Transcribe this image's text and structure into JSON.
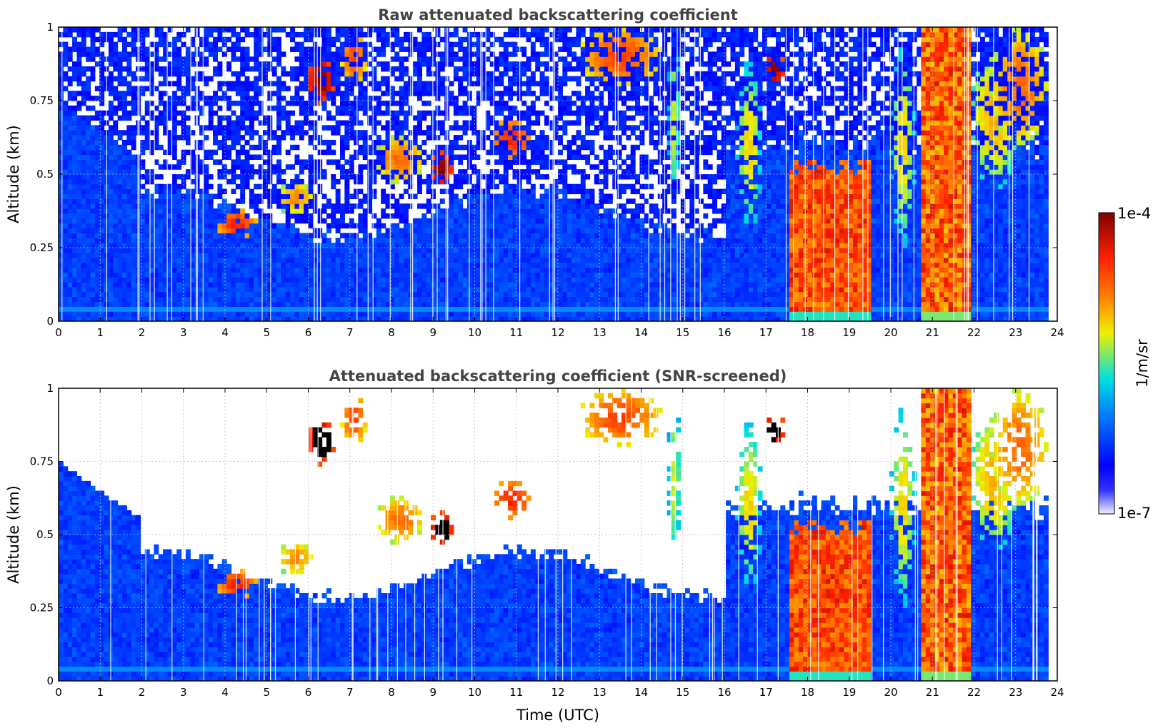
{
  "colors": {
    "colormap": [
      "#f0f0ff",
      "#0000ff",
      "#0080ff",
      "#00e0e0",
      "#f0f000",
      "#ff8000",
      "#ff2000",
      "#800000"
    ],
    "frame": "#000000",
    "grid": "#bbbbbb",
    "title": "#444444",
    "overflow": "#000000"
  },
  "chart_data": [
    {
      "type": "heatmap",
      "title": "Raw attenuated backscattering coefficient",
      "xlabel": "",
      "ylabel": "Altitude (km)",
      "xlim": [
        0,
        24
      ],
      "ylim": [
        0,
        1
      ],
      "x_ticks": [
        "0",
        "1",
        "2",
        "3",
        "4",
        "5",
        "6",
        "7",
        "8",
        "9",
        "10",
        "11",
        "12",
        "13",
        "14",
        "15",
        "16",
        "17",
        "18",
        "19",
        "20",
        "21",
        "22",
        "23",
        "24"
      ],
      "y_ticks": [
        "0",
        "0.25",
        "0.5",
        "0.75",
        "1"
      ],
      "grid": true,
      "screened": false,
      "features": [
        {
          "x": [
            0,
            24
          ],
          "y": [
            0,
            0.35
          ],
          "level": "low"
        },
        {
          "x": [
            17.6,
            19.5
          ],
          "y": [
            0,
            0.55
          ],
          "level": "high"
        },
        {
          "x": [
            20.7,
            21.9
          ],
          "y": [
            0,
            1.0
          ],
          "level": "high"
        },
        {
          "x": [
            6.0,
            6.7
          ],
          "y": [
            0.75,
            0.92
          ],
          "level": "very high"
        },
        {
          "x": [
            9.0,
            9.5
          ],
          "y": [
            0.47,
            0.6
          ],
          "level": "very high"
        },
        {
          "x": [
            3.8,
            4.8
          ],
          "y": [
            0.28,
            0.4
          ],
          "level": "high"
        },
        {
          "x": [
            16.9,
            17.4
          ],
          "y": [
            0.78,
            0.92
          ],
          "level": "very high"
        }
      ]
    },
    {
      "type": "heatmap",
      "title": "Attenuated backscattering coefficient (SNR-screened)",
      "xlabel": "Time (UTC)",
      "ylabel": "Altitude (km)",
      "xlim": [
        0,
        24
      ],
      "ylim": [
        0,
        1
      ],
      "x_ticks": [
        "0",
        "1",
        "2",
        "3",
        "4",
        "5",
        "6",
        "7",
        "8",
        "9",
        "10",
        "11",
        "12",
        "13",
        "14",
        "15",
        "16",
        "17",
        "18",
        "19",
        "20",
        "21",
        "22",
        "23",
        "24"
      ],
      "y_ticks": [
        "0",
        "0.25",
        "0.5",
        "0.75",
        "1"
      ],
      "grid": true,
      "screened": true,
      "features": [
        {
          "x": [
            0,
            24
          ],
          "y": [
            0,
            0.35
          ],
          "level": "low"
        },
        {
          "x": [
            17.6,
            19.5
          ],
          "y": [
            0,
            0.55
          ],
          "level": "high"
        },
        {
          "x": [
            20.7,
            21.9
          ],
          "y": [
            0,
            1.0
          ],
          "level": "high"
        },
        {
          "x": [
            6.0,
            6.7
          ],
          "y": [
            0.75,
            0.92
          ],
          "level": "very high"
        },
        {
          "x": [
            9.0,
            9.5
          ],
          "y": [
            0.47,
            0.6
          ],
          "level": "very high"
        },
        {
          "x": [
            3.8,
            4.8
          ],
          "y": [
            0.28,
            0.4
          ],
          "level": "high"
        },
        {
          "x": [
            16.9,
            17.4
          ],
          "y": [
            0.78,
            0.92
          ],
          "level": "very high"
        }
      ]
    }
  ],
  "colorbar": {
    "label": "1/m/sr",
    "max_label": "1e-4",
    "min_label": "1e-7",
    "range": [
      1e-07,
      0.0001
    ],
    "scale": "log"
  }
}
